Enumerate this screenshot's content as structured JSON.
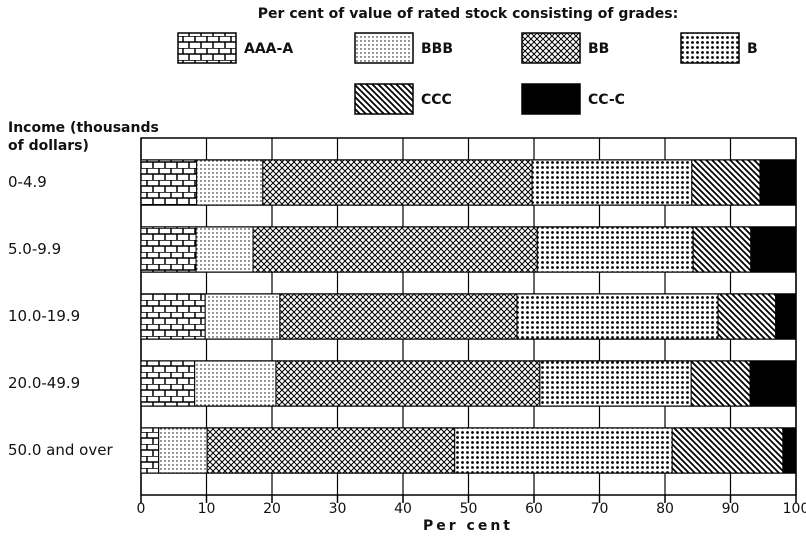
{
  "chart_data": {
    "type": "stacked_barh",
    "title": "Per cent of value of rated stock consisting of grades:",
    "ylabel": [
      "Income (thousands",
      "of dollars)"
    ],
    "xlabel": "Per cent",
    "categories": [
      "0-4.9",
      "5.0-9.9",
      "10.0-19.9",
      "20.0-49.9",
      "50.0 and over"
    ],
    "series": [
      {
        "name": "AAA-A",
        "color": "#000000",
        "pattern": "brick",
        "values": [
          8.5,
          8.4,
          9.8,
          8.2,
          2.7
        ]
      },
      {
        "name": "BBB",
        "color": "#000000",
        "pattern": "finedots",
        "values": [
          10.1,
          8.7,
          11.4,
          12.4,
          7.4
        ]
      },
      {
        "name": "BB",
        "color": "#000000",
        "pattern": "crosshatch",
        "values": [
          41.1,
          43.4,
          36.2,
          40.3,
          37.8
        ]
      },
      {
        "name": "B",
        "color": "#000000",
        "pattern": "coarsedots",
        "values": [
          24.4,
          23.8,
          30.7,
          23.1,
          33.2
        ]
      },
      {
        "name": "CCC",
        "color": "#000000",
        "pattern": "diagonal",
        "values": [
          10.4,
          8.8,
          8.8,
          9.0,
          16.9
        ]
      },
      {
        "name": "CC-C",
        "color": "#000000",
        "pattern": "solid",
        "values": [
          5.5,
          6.9,
          3.1,
          7.0,
          2.0
        ]
      }
    ],
    "xlim": [
      0,
      100
    ],
    "xticks": [
      0,
      10,
      20,
      30,
      40,
      50,
      60,
      70,
      80,
      90,
      100
    ],
    "grid": true
  }
}
